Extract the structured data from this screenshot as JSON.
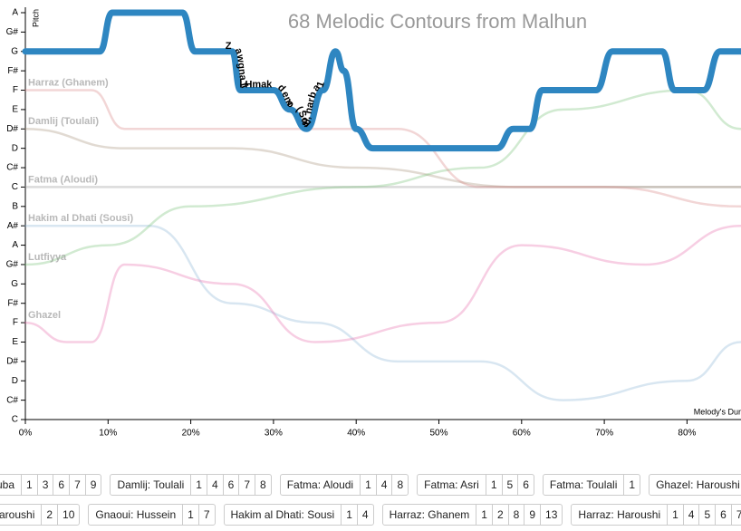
{
  "chart_data": {
    "type": "line",
    "title": "68 Melodic Contours from Malhun",
    "y_label": "Pitch",
    "x_label": "Melody's Dur",
    "xlim": [
      0,
      86.5
    ],
    "xticks": [
      {
        "value": 0,
        "label": "0%"
      },
      {
        "value": 10,
        "label": "10%"
      },
      {
        "value": 20,
        "label": "20%"
      },
      {
        "value": 30,
        "label": "30%"
      },
      {
        "value": 40,
        "label": "40%"
      },
      {
        "value": 50,
        "label": "50%"
      },
      {
        "value": 60,
        "label": "60%"
      },
      {
        "value": 70,
        "label": "70%"
      },
      {
        "value": 80,
        "label": "80%"
      }
    ],
    "ylim": [
      0,
      21
    ],
    "yticks": [
      {
        "value": 0,
        "label": "C"
      },
      {
        "value": 1,
        "label": "C#"
      },
      {
        "value": 2,
        "label": "D"
      },
      {
        "value": 3,
        "label": "D#"
      },
      {
        "value": 4,
        "label": "E"
      },
      {
        "value": 5,
        "label": "F"
      },
      {
        "value": 6,
        "label": "F#"
      },
      {
        "value": 7,
        "label": "G"
      },
      {
        "value": 8,
        "label": "G#"
      },
      {
        "value": 9,
        "label": "A"
      },
      {
        "value": 10,
        "label": "A#"
      },
      {
        "value": 11,
        "label": "B"
      },
      {
        "value": 12,
        "label": "C"
      },
      {
        "value": 13,
        "label": "C#"
      },
      {
        "value": 14,
        "label": "D"
      },
      {
        "value": 15,
        "label": "D#"
      },
      {
        "value": 16,
        "label": "E"
      },
      {
        "value": 17,
        "label": "F"
      },
      {
        "value": 18,
        "label": "F#"
      },
      {
        "value": 19,
        "label": "G"
      },
      {
        "value": 20,
        "label": "G#"
      },
      {
        "value": 21,
        "label": "A"
      }
    ],
    "series": [
      {
        "name": "Zawgna fil Hmak demo (Sousi), harba 1",
        "color": "#2e86c1",
        "x": [
          0,
          9,
          10.5,
          19,
          20.5,
          25,
          26,
          30,
          32,
          34,
          36,
          37.5,
          38.5,
          40,
          42,
          57,
          59,
          61,
          62.5,
          69,
          71,
          77,
          78.5,
          82,
          84,
          86.5
        ],
        "values": [
          19,
          19,
          21,
          21,
          19,
          19,
          17,
          17,
          16,
          15,
          17,
          19,
          18,
          15,
          14,
          14,
          15,
          15,
          17,
          17,
          19,
          19,
          17,
          17,
          19,
          19
        ]
      },
      {
        "name": "Harraz (Ghanem)",
        "color": "#d98a8a",
        "x": [
          0,
          8,
          12,
          30,
          45,
          55,
          70,
          86.5
        ],
        "values": [
          17,
          17,
          15,
          15,
          15,
          12,
          12,
          11
        ]
      },
      {
        "name": "Ghazel",
        "color": "#e872b0",
        "x": [
          0,
          5,
          8,
          12,
          25,
          35,
          50,
          60,
          75,
          86.5
        ],
        "values": [
          5,
          4,
          4,
          8,
          7,
          4,
          5,
          9,
          8,
          10
        ]
      },
      {
        "name": "Lutfiyya",
        "color": "#7cc47c",
        "x": [
          0,
          10,
          20,
          40,
          55,
          65,
          80,
          86.5
        ],
        "values": [
          8,
          9,
          11,
          12,
          13,
          16,
          17,
          15
        ]
      },
      {
        "name": "Damlij (Toulali)",
        "color": "#a8957e",
        "x": [
          0,
          12,
          25,
          40,
          60,
          86.5
        ],
        "values": [
          15,
          14,
          14,
          13,
          12,
          12
        ]
      },
      {
        "name": "Fatma (Aloudi)",
        "color": "#999999",
        "x": [
          0,
          86.5
        ],
        "values": [
          12,
          12
        ]
      },
      {
        "name": "Hakim al Dhati (Sousi)",
        "color": "#8fb6d6",
        "x": [
          0,
          15,
          25,
          35,
          45,
          55,
          65,
          80,
          86.5
        ],
        "values": [
          10,
          10,
          6,
          5,
          3,
          3,
          1,
          2,
          4
        ]
      }
    ]
  },
  "tags": [
    [
      {
        "name": "uba",
        "numbers": [
          1,
          3,
          6,
          7,
          9
        ]
      },
      {
        "name": "Damlij: Toulali",
        "numbers": [
          1,
          4,
          6,
          7,
          8
        ]
      },
      {
        "name": "Fatma: Aloudi",
        "numbers": [
          1,
          4,
          8
        ]
      },
      {
        "name": "Fatma: Asri",
        "numbers": [
          1,
          5,
          6
        ]
      },
      {
        "name": "Fatma: Toulali",
        "numbers": [
          1
        ]
      },
      {
        "name": "Ghazel: Haroushi",
        "numbers": []
      }
    ],
    [
      {
        "name": "aroushi",
        "numbers": [
          2,
          10
        ]
      },
      {
        "name": "Gnaoui: Hussein",
        "numbers": [
          1,
          7
        ]
      },
      {
        "name": "Hakim al Dhati: Sousi",
        "numbers": [
          1,
          4
        ]
      },
      {
        "name": "Harraz: Ghanem",
        "numbers": [
          1,
          2,
          8,
          9,
          13
        ]
      },
      {
        "name": "Harraz: Haroushi",
        "numbers": [
          1,
          4,
          5,
          6,
          7
        ]
      }
    ]
  ]
}
